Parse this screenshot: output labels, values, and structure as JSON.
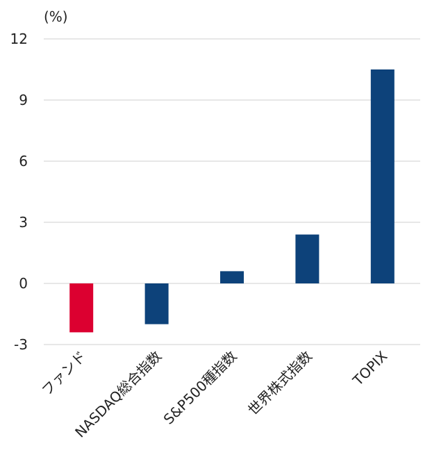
{
  "chart_data": {
    "type": "bar",
    "unit_label": "(%)",
    "categories": [
      "ファンド",
      "NASDAQ総合指数",
      "S&P500種指数",
      "世界株式指数",
      "TOPIX"
    ],
    "values": [
      -2.4,
      -2.0,
      0.6,
      2.4,
      10.5
    ],
    "colors": [
      "#dc0030",
      "#0d427a",
      "#0d427a",
      "#0d427a",
      "#0d427a"
    ],
    "ylim": [
      -3,
      12
    ],
    "yticks": [
      12,
      9,
      6,
      3,
      0,
      -3
    ],
    "grid": true,
    "legend": "none"
  }
}
